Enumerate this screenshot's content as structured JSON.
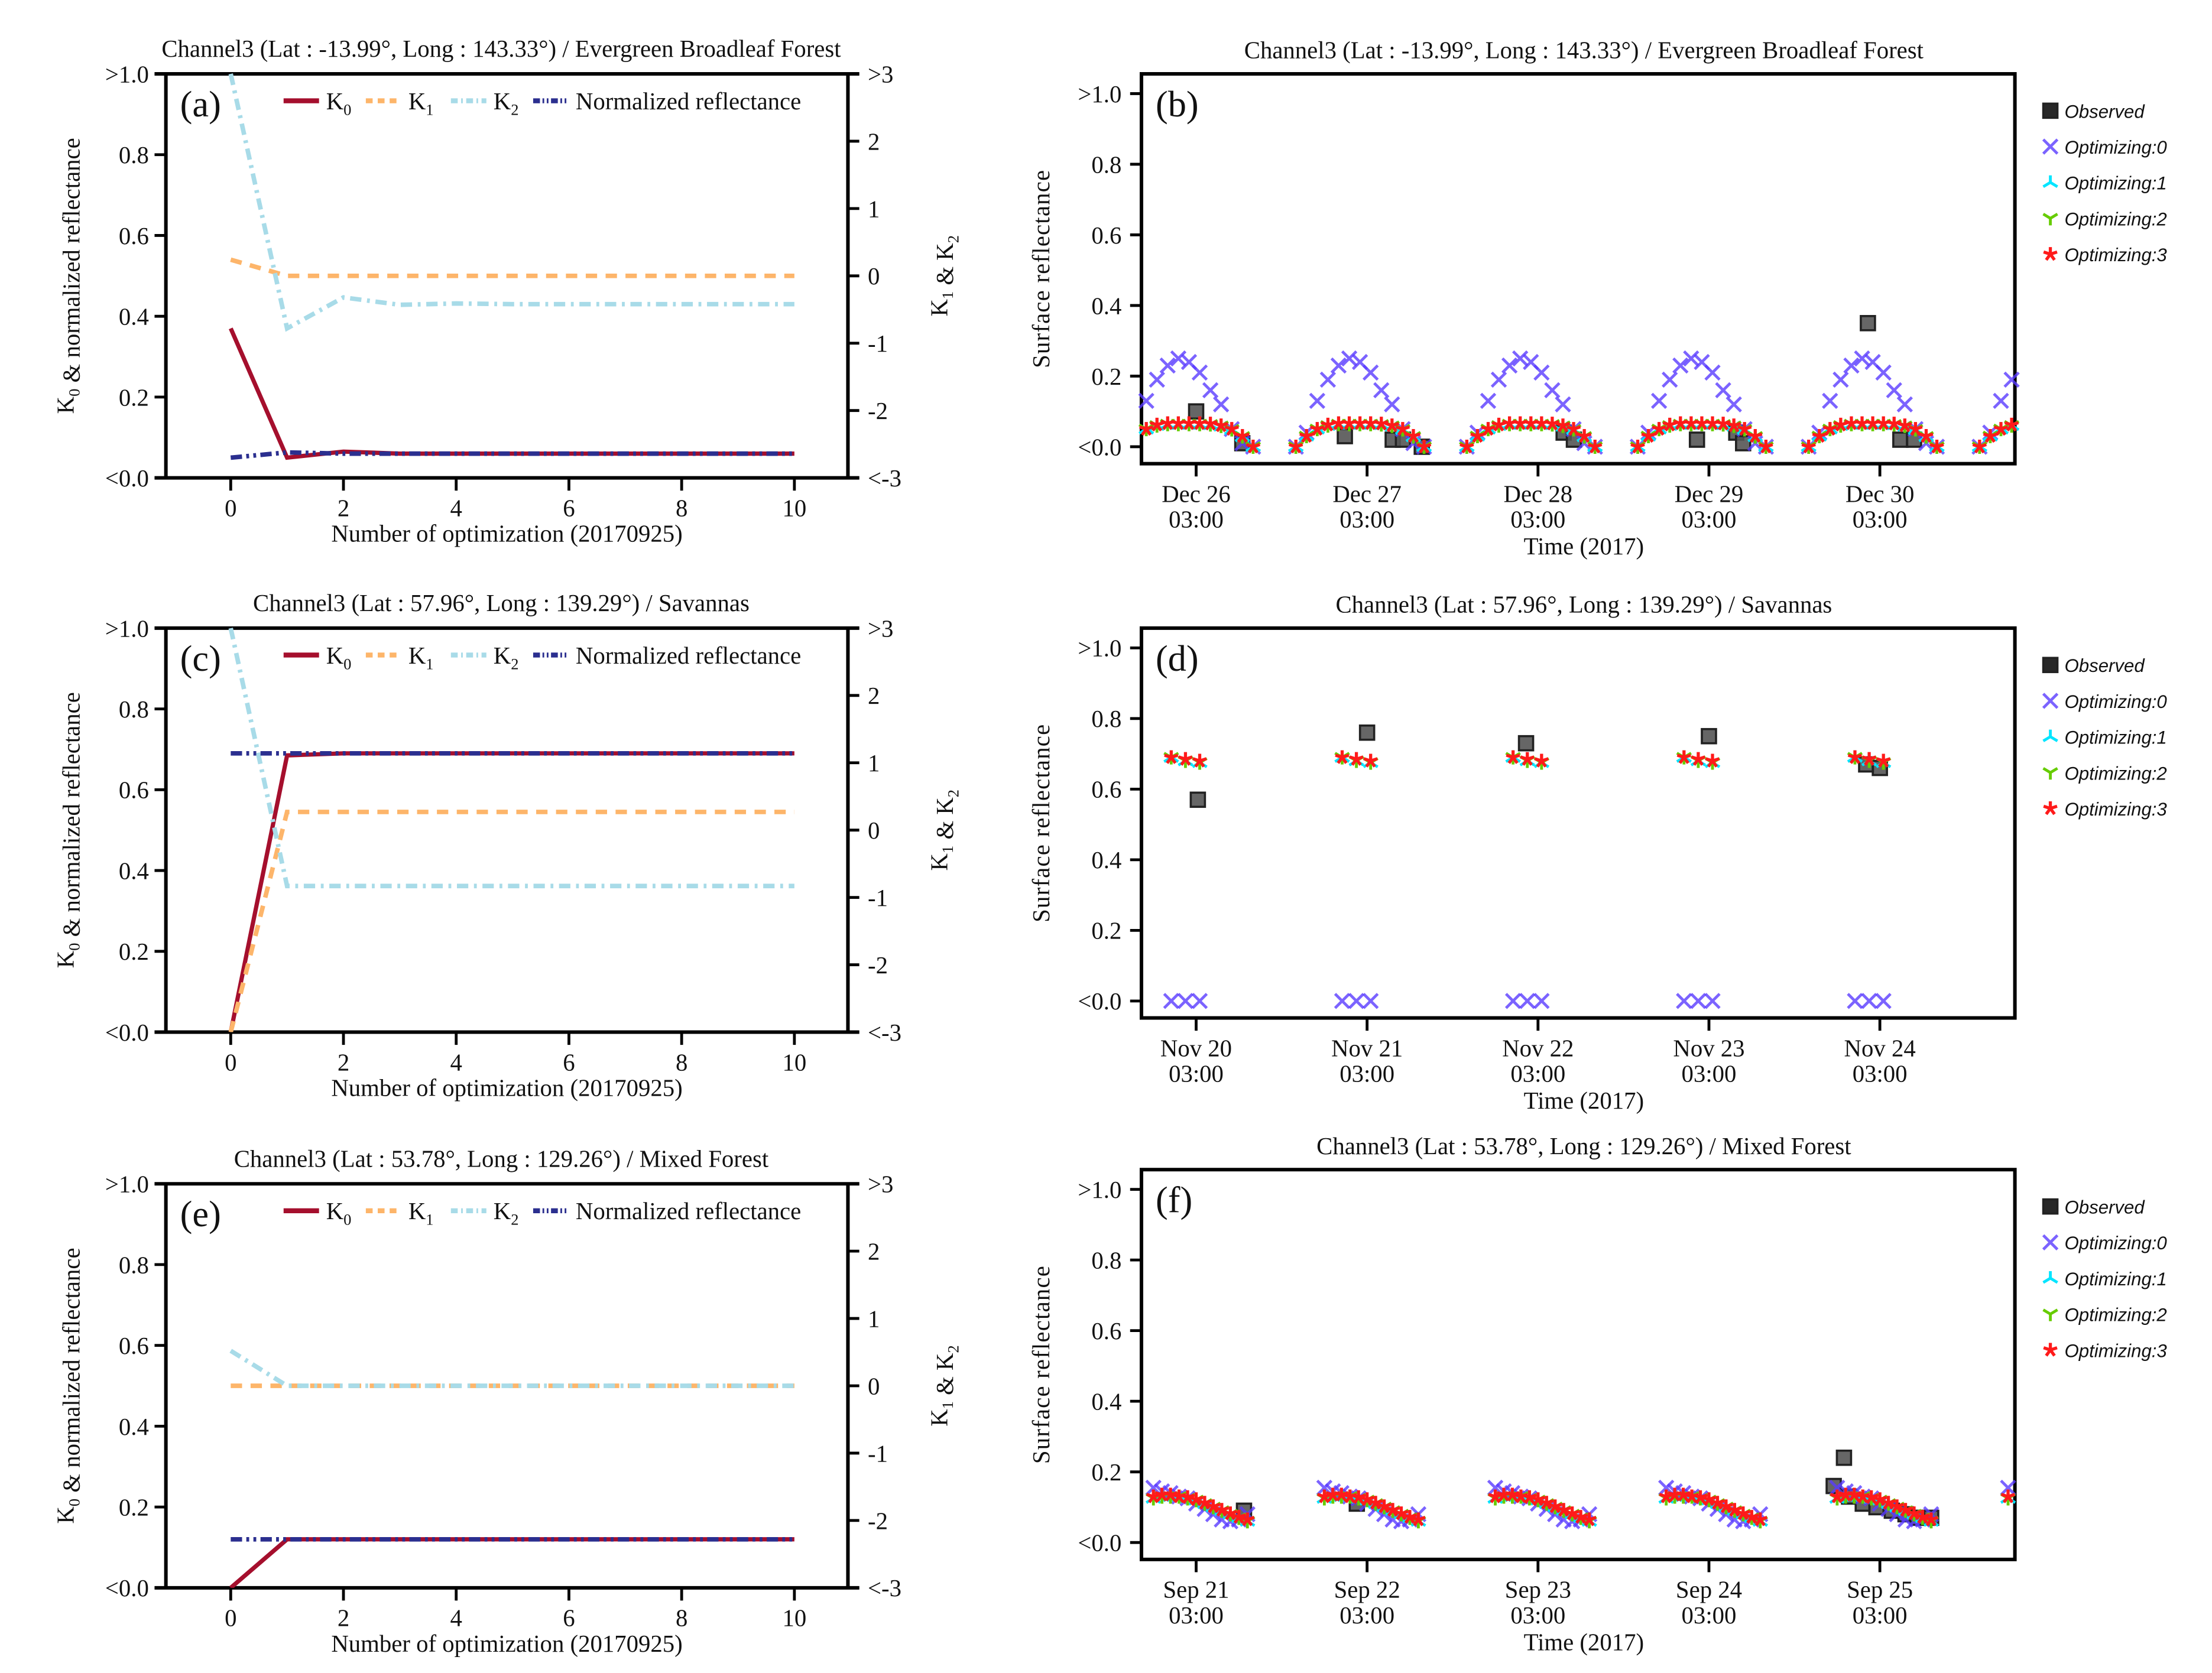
{
  "chart_data": [
    {
      "type": "line",
      "panel_label": "(a)",
      "title": "Channel3 (Lat : -13.99°, Long :  143.33°) / Evergreen Broadleaf Forest",
      "xlabel": "Number of optimization (20170925)",
      "ylabel": "K0 & normalized reflectance",
      "y2label": "K1 & K2",
      "xlim": [
        -1.15,
        10.95
      ],
      "ylim": [
        0,
        1
      ],
      "y2lim": [
        -3,
        3
      ],
      "x_ticks": [
        0,
        2,
        4,
        6,
        8,
        10
      ],
      "y_ticks": [
        {
          "v": 1.0,
          "label": ">1.0"
        },
        {
          "v": 0.8,
          "label": "0.8"
        },
        {
          "v": 0.6,
          "label": "0.6"
        },
        {
          "v": 0.4,
          "label": "0.4"
        },
        {
          "v": 0.2,
          "label": "0.2"
        },
        {
          "v": 0.0,
          "label": "<0.0"
        }
      ],
      "y2_ticks": [
        {
          "v": 3,
          "label": ">3"
        },
        {
          "v": 2,
          "label": "2"
        },
        {
          "v": 1,
          "label": "1"
        },
        {
          "v": 0,
          "label": "0"
        },
        {
          "v": -1,
          "label": "-1"
        },
        {
          "v": -2,
          "label": "-2"
        },
        {
          "v": -3,
          "label": "<-3"
        }
      ],
      "x": [
        0,
        1,
        2,
        3,
        4,
        5,
        6,
        7,
        8,
        9,
        10
      ],
      "series": [
        {
          "name": "K0",
          "axis": "left",
          "color": "#a50f2d",
          "dash": "",
          "values": [
            0.37,
            0.05,
            0.065,
            0.06,
            0.06,
            0.06,
            0.06,
            0.06,
            0.06,
            0.06,
            0.06
          ]
        },
        {
          "name": "K1",
          "axis": "right",
          "color": "#fdb56a",
          "dash": "8,6",
          "values": [
            0.24,
            0,
            0,
            0,
            0,
            0,
            0,
            0,
            0,
            0,
            0
          ]
        },
        {
          "name": "K2",
          "axis": "right",
          "color": "#a8dbe8",
          "dash": "8,4,2,4",
          "values": [
            3,
            -0.78,
            -0.32,
            -0.43,
            -0.41,
            -0.42,
            -0.42,
            -0.42,
            -0.42,
            -0.42,
            -0.42
          ]
        },
        {
          "name": "Normalized reflectance",
          "axis": "left",
          "color": "#2b2f8f",
          "dash": "8,3,2,3,2,3",
          "values": [
            0.05,
            0.063,
            0.06,
            0.06,
            0.06,
            0.06,
            0.06,
            0.06,
            0.06,
            0.06,
            0.06
          ]
        }
      ]
    },
    {
      "type": "scatter",
      "panel_label": "(b)",
      "title": "Channel3 (Lat : -13.99°, Long :  143.33°) / Evergreen Broadleaf Forest",
      "xlabel": "Time (2017)",
      "ylabel": "Surface reflectance",
      "xlim_days": [
        -0.32,
        4.79
      ],
      "ylim": [
        -0.048,
        1.056
      ],
      "x_ticks": [
        [
          "Dec 26",
          "03:00"
        ],
        [
          "Dec 27",
          "03:00"
        ],
        [
          "Dec 28",
          "03:00"
        ],
        [
          "Dec 29",
          "03:00"
        ],
        [
          "Dec 30",
          "03:00"
        ]
      ],
      "y_ticks": [
        {
          "v": 1.0,
          "label": ">1.0"
        },
        {
          "v": 0.8,
          "label": "0.8"
        },
        {
          "v": 0.6,
          "label": "0.6"
        },
        {
          "v": 0.4,
          "label": "0.4"
        },
        {
          "v": 0.2,
          "label": "0.2"
        },
        {
          "v": 0.0,
          "label": "<0.0"
        }
      ],
      "days": [
        0,
        1,
        2,
        3,
        4,
        5
      ],
      "hour_offsets": [
        -10,
        -8.5,
        -7,
        -5.5,
        -4,
        -2.5,
        -1,
        0.5,
        2,
        3.5,
        5,
        6.5,
        8
      ],
      "series": [
        {
          "name": "Optimizing:0",
          "marker": "x",
          "color": "#5a3cff",
          "daily_values": [
            0,
            0.04,
            0.13,
            0.19,
            0.23,
            0.25,
            0.24,
            0.21,
            0.16,
            0.12,
            0.05,
            0.01,
            0
          ]
        },
        {
          "name": "Optimizing:1",
          "marker": "tri_up",
          "color": "#00e5ff",
          "daily_values": [
            0,
            0.03,
            0.05,
            0.06,
            0.063,
            0.063,
            0.063,
            0.063,
            0.062,
            0.058,
            0.048,
            0.028,
            0
          ]
        },
        {
          "name": "Optimizing:2",
          "marker": "tri_down",
          "color": "#66cc00",
          "daily_values": [
            0,
            0.03,
            0.05,
            0.06,
            0.064,
            0.064,
            0.064,
            0.064,
            0.063,
            0.059,
            0.049,
            0.029,
            0
          ]
        },
        {
          "name": "Optimizing:3",
          "marker": "star",
          "color": "#ff1a1a",
          "daily_values": [
            0,
            0.03,
            0.05,
            0.062,
            0.066,
            0.066,
            0.066,
            0.066,
            0.065,
            0.06,
            0.05,
            0.03,
            0
          ]
        }
      ],
      "observed": {
        "name": "Observed",
        "color": "#555555",
        "points": [
          [
            0.0,
            0.1
          ],
          [
            0.27,
            0.01
          ],
          [
            0.87,
            0.03
          ],
          [
            1.15,
            0.02
          ],
          [
            1.21,
            0.02
          ],
          [
            1.32,
            0.0
          ],
          [
            2.15,
            0.04
          ],
          [
            2.21,
            0.02
          ],
          [
            2.93,
            0.02
          ],
          [
            3.16,
            0.04
          ],
          [
            3.2,
            0.01
          ],
          [
            3.93,
            0.35
          ],
          [
            4.12,
            0.02
          ],
          [
            4.2,
            0.02
          ]
        ]
      }
    },
    {
      "type": "line",
      "panel_label": "(c)",
      "title": "Channel3 (Lat :  57.96°, Long :  139.29°) / Savannas",
      "xlabel": "Number of optimization (20170925)",
      "ylabel": "K0 & normalized reflectance",
      "y2label": "K1 & K2",
      "xlim": [
        -1.15,
        10.95
      ],
      "ylim": [
        0,
        1
      ],
      "y2lim": [
        -3,
        3
      ],
      "x_ticks": [
        0,
        2,
        4,
        6,
        8,
        10
      ],
      "y_ticks": [
        {
          "v": 1.0,
          "label": ">1.0"
        },
        {
          "v": 0.8,
          "label": "0.8"
        },
        {
          "v": 0.6,
          "label": "0.6"
        },
        {
          "v": 0.4,
          "label": "0.4"
        },
        {
          "v": 0.2,
          "label": "0.2"
        },
        {
          "v": 0.0,
          "label": "<0.0"
        }
      ],
      "y2_ticks": [
        {
          "v": 3,
          "label": ">3"
        },
        {
          "v": 2,
          "label": "2"
        },
        {
          "v": 1,
          "label": "1"
        },
        {
          "v": 0,
          "label": "0"
        },
        {
          "v": -1,
          "label": "-1"
        },
        {
          "v": -2,
          "label": "-2"
        },
        {
          "v": -3,
          "label": "<-3"
        }
      ],
      "x": [
        0,
        1,
        2,
        3,
        4,
        5,
        6,
        7,
        8,
        9,
        10
      ],
      "series": [
        {
          "name": "K0",
          "axis": "left",
          "color": "#a50f2d",
          "dash": "",
          "values": [
            0,
            0.685,
            0.69,
            0.69,
            0.69,
            0.69,
            0.69,
            0.69,
            0.69,
            0.69,
            0.69
          ]
        },
        {
          "name": "K1",
          "axis": "right",
          "color": "#fdb56a",
          "dash": "8,6",
          "values": [
            -3,
            0.27,
            0.27,
            0.27,
            0.27,
            0.27,
            0.27,
            0.27,
            0.27,
            0.27,
            0.27
          ]
        },
        {
          "name": "K2",
          "axis": "right",
          "color": "#a8dbe8",
          "dash": "8,4,2,4",
          "values": [
            3,
            -0.83,
            -0.83,
            -0.83,
            -0.83,
            -0.83,
            -0.83,
            -0.83,
            -0.83,
            -0.83,
            -0.83
          ]
        },
        {
          "name": "Normalized reflectance",
          "axis": "left",
          "color": "#2b2f8f",
          "dash": "8,3,2,3,2,3",
          "values": [
            0.69,
            0.69,
            0.69,
            0.69,
            0.69,
            0.69,
            0.69,
            0.69,
            0.69,
            0.69,
            0.69
          ]
        }
      ]
    },
    {
      "type": "scatter",
      "panel_label": "(d)",
      "title": "Channel3 (Lat :  57.96°, Long :  139.29°) / Savannas",
      "xlabel": "Time (2017)",
      "ylabel": "Surface reflectance",
      "xlim_days": [
        -0.32,
        4.79
      ],
      "ylim": [
        -0.048,
        1.056
      ],
      "x_ticks": [
        [
          "Nov 20",
          "03:00"
        ],
        [
          "Nov 21",
          "03:00"
        ],
        [
          "Nov 22",
          "03:00"
        ],
        [
          "Nov 23",
          "03:00"
        ],
        [
          "Nov 24",
          "03:00"
        ]
      ],
      "y_ticks": [
        {
          "v": 1.0,
          "label": ">1.0"
        },
        {
          "v": 0.8,
          "label": "0.8"
        },
        {
          "v": 0.6,
          "label": "0.6"
        },
        {
          "v": 0.4,
          "label": "0.4"
        },
        {
          "v": 0.2,
          "label": "0.2"
        },
        {
          "v": 0.0,
          "label": "<0.0"
        }
      ],
      "days": [
        0,
        1,
        2,
        3,
        4
      ],
      "hour_offsets": [
        -3.5,
        -1.5,
        0.5
      ],
      "series": [
        {
          "name": "Optimizing:0",
          "marker": "x",
          "color": "#5a3cff",
          "daily_values": [
            0,
            0,
            0
          ]
        },
        {
          "name": "Optimizing:1",
          "marker": "tri_up",
          "color": "#00e5ff",
          "daily_values": [
            0.69,
            0.68,
            0.675
          ]
        },
        {
          "name": "Optimizing:2",
          "marker": "tri_down",
          "color": "#66cc00",
          "daily_values": [
            0.69,
            0.68,
            0.675
          ]
        },
        {
          "name": "Optimizing:3",
          "marker": "star",
          "color": "#ff1a1a",
          "daily_values": [
            0.69,
            0.685,
            0.68
          ]
        }
      ],
      "observed": {
        "name": "Observed",
        "color": "#555555",
        "points": [
          [
            0.01,
            0.57
          ],
          [
            1.0,
            0.76
          ],
          [
            1.93,
            0.73
          ],
          [
            3.0,
            0.75
          ],
          [
            3.92,
            0.67
          ],
          [
            4.0,
            0.66
          ]
        ]
      }
    },
    {
      "type": "line",
      "panel_label": "(e)",
      "title": "Channel3 (Lat :  53.78°, Long :  129.26°) / Mixed Forest",
      "xlabel": "Number of optimization (20170925)",
      "ylabel": "K0 & normalized reflectance",
      "y2label": "K1 & K2",
      "xlim": [
        -1.15,
        10.95
      ],
      "ylim": [
        0,
        1
      ],
      "y2lim": [
        -3,
        3
      ],
      "x_ticks": [
        0,
        2,
        4,
        6,
        8,
        10
      ],
      "y_ticks": [
        {
          "v": 1.0,
          "label": ">1.0"
        },
        {
          "v": 0.8,
          "label": "0.8"
        },
        {
          "v": 0.6,
          "label": "0.6"
        },
        {
          "v": 0.4,
          "label": "0.4"
        },
        {
          "v": 0.2,
          "label": "0.2"
        },
        {
          "v": 0.0,
          "label": "<0.0"
        }
      ],
      "y2_ticks": [
        {
          "v": 3,
          "label": ">3"
        },
        {
          "v": 2,
          "label": "2"
        },
        {
          "v": 1,
          "label": "1"
        },
        {
          "v": 0,
          "label": "0"
        },
        {
          "v": -1,
          "label": "-1"
        },
        {
          "v": -2,
          "label": "-2"
        },
        {
          "v": -3,
          "label": "<-3"
        }
      ],
      "x": [
        0,
        1,
        2,
        3,
        4,
        5,
        6,
        7,
        8,
        9,
        10
      ],
      "series": [
        {
          "name": "K0",
          "axis": "left",
          "color": "#a50f2d",
          "dash": "",
          "values": [
            0,
            0.12,
            0.12,
            0.12,
            0.12,
            0.12,
            0.12,
            0.12,
            0.12,
            0.12,
            0.12
          ]
        },
        {
          "name": "K1",
          "axis": "right",
          "color": "#fdb56a",
          "dash": "8,6",
          "values": [
            0,
            0,
            0,
            0,
            0,
            0,
            0,
            0,
            0,
            0,
            0
          ]
        },
        {
          "name": "K2",
          "axis": "right",
          "color": "#a8dbe8",
          "dash": "8,4,2,4",
          "values": [
            0.52,
            0,
            0,
            0,
            0,
            0,
            0,
            0,
            0,
            0,
            0
          ]
        },
        {
          "name": "Normalized reflectance",
          "axis": "left",
          "color": "#2b2f8f",
          "dash": "8,3,2,3,2,3",
          "values": [
            0.12,
            0.12,
            0.12,
            0.12,
            0.12,
            0.12,
            0.12,
            0.12,
            0.12,
            0.12,
            0.12
          ]
        }
      ]
    },
    {
      "type": "scatter",
      "panel_label": "(f)",
      "title": "Channel3 (Lat :  53.78°, Long :  129.26°) / Mixed Forest",
      "xlabel": "Time (2017)",
      "ylabel": "Surface reflectance",
      "xlim_days": [
        -0.32,
        4.79
      ],
      "ylim": [
        -0.048,
        1.056
      ],
      "x_ticks": [
        [
          "Sep 21",
          "03:00"
        ],
        [
          "Sep 22",
          "03:00"
        ],
        [
          "Sep 23",
          "03:00"
        ],
        [
          "Sep 24",
          "03:00"
        ],
        [
          "Sep 25",
          "03:00"
        ]
      ],
      "y_ticks": [
        {
          "v": 1.0,
          "label": ">1.0"
        },
        {
          "v": 0.8,
          "label": "0.8"
        },
        {
          "v": 0.6,
          "label": "0.6"
        },
        {
          "v": 0.4,
          "label": "0.4"
        },
        {
          "v": 0.2,
          "label": "0.2"
        },
        {
          "v": 0.0,
          "label": "<0.0"
        }
      ],
      "days": [
        0,
        1,
        2,
        3,
        4,
        5
      ],
      "hour_offsets": [
        -6,
        -4.8,
        -3.6,
        -2.4,
        -1.2,
        0,
        1.2,
        2.4,
        3.6,
        4.8,
        6,
        7.2
      ],
      "series": [
        {
          "name": "Optimizing:0",
          "marker": "x",
          "color": "#5a3cff",
          "daily_values": [
            0.155,
            0.145,
            0.14,
            0.13,
            0.125,
            0.11,
            0.095,
            0.08,
            0.065,
            0.06,
            0.065,
            0.08
          ]
        },
        {
          "name": "Optimizing:1",
          "marker": "tri_up",
          "color": "#00e5ff",
          "daily_values": [
            0.125,
            0.13,
            0.13,
            0.13,
            0.125,
            0.12,
            0.11,
            0.1,
            0.09,
            0.08,
            0.07,
            0.06
          ]
        },
        {
          "name": "Optimizing:2",
          "marker": "tri_down",
          "color": "#66cc00",
          "daily_values": [
            0.125,
            0.13,
            0.13,
            0.13,
            0.125,
            0.12,
            0.11,
            0.1,
            0.09,
            0.08,
            0.07,
            0.06
          ]
        },
        {
          "name": "Optimizing:3",
          "marker": "star",
          "color": "#ff1a1a",
          "daily_values": [
            0.13,
            0.135,
            0.135,
            0.13,
            0.128,
            0.122,
            0.112,
            0.102,
            0.092,
            0.082,
            0.072,
            0.065
          ]
        }
      ],
      "observed": {
        "name": "Observed",
        "color": "#555555",
        "points": [
          [
            0.28,
            0.09
          ],
          [
            0.94,
            0.11
          ],
          [
            3.73,
            0.16
          ],
          [
            3.79,
            0.24
          ],
          [
            3.82,
            0.13
          ],
          [
            3.9,
            0.11
          ],
          [
            3.98,
            0.1
          ],
          [
            4.07,
            0.09
          ],
          [
            4.15,
            0.08
          ],
          [
            4.22,
            0.07
          ],
          [
            4.3,
            0.07
          ]
        ]
      }
    }
  ]
}
